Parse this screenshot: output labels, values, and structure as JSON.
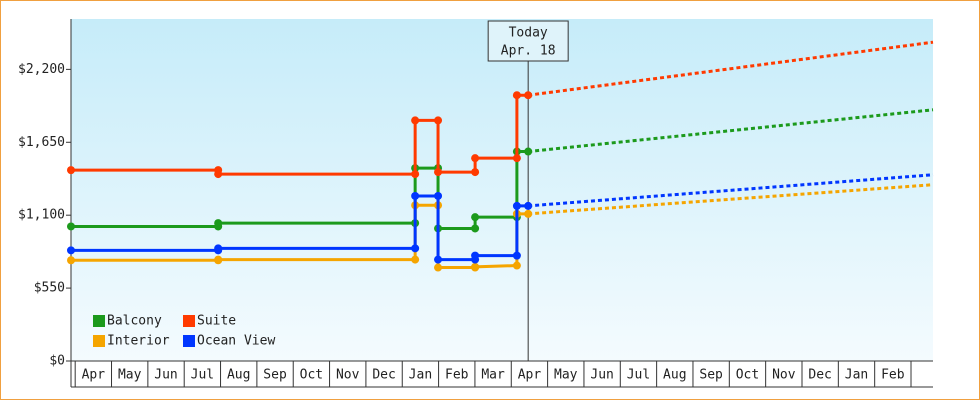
{
  "chart_data": {
    "type": "step-line",
    "categories": [
      "Apr",
      "May",
      "Jun",
      "Jul",
      "Aug",
      "Sep",
      "Oct",
      "Nov",
      "Dec",
      "Jan",
      "Feb",
      "Mar",
      "Apr",
      "May",
      "Jun",
      "Jul",
      "Aug",
      "Sep",
      "Oct",
      "Nov",
      "Dec",
      "Jan",
      "Feb"
    ],
    "xlim": [
      -0.06,
      23.66
    ],
    "ylim": [
      0,
      2580
    ],
    "yticks": [
      {
        "value": 0,
        "label": "$0"
      },
      {
        "value": 550,
        "label": "$550"
      },
      {
        "value": 1100,
        "label": "$1,100"
      },
      {
        "value": 1650,
        "label": "$1,650"
      },
      {
        "value": 2200,
        "label": "$2,200"
      }
    ],
    "legend": "lower left",
    "annotation": {
      "x": 12.52,
      "title": "Today",
      "label": "Apr. 18"
    },
    "series": [
      {
        "name": "Balcony",
        "color": "#1c9a1c",
        "x": [
          -0.06,
          3.99,
          3.99,
          9.41,
          9.41,
          10.04,
          10.04,
          11.06,
          11.06,
          12.21,
          12.21,
          12.52
        ],
        "values": [
          1015,
          1015,
          1040,
          1040,
          1455,
          1455,
          1000,
          1000,
          1085,
          1085,
          1580,
          1580
        ],
        "forecast_x": [
          23.66
        ],
        "forecast_values": [
          1895
        ]
      },
      {
        "name": "Suite",
        "color": "#ff3a00",
        "x": [
          -0.06,
          3.99,
          3.99,
          9.41,
          9.41,
          10.04,
          10.04,
          11.06,
          11.06,
          12.21,
          12.21,
          12.52
        ],
        "values": [
          1440,
          1440,
          1410,
          1410,
          1815,
          1815,
          1425,
          1425,
          1530,
          1530,
          2005,
          2005
        ],
        "forecast_x": [
          23.66
        ],
        "forecast_values": [
          2405
        ]
      },
      {
        "name": "Interior",
        "color": "#f5a500",
        "x": [
          -0.06,
          3.99,
          3.99,
          9.41,
          9.41,
          10.04,
          10.04,
          11.06,
          11.06,
          12.21,
          12.21,
          12.52
        ],
        "values": [
          760,
          760,
          765,
          765,
          1175,
          1175,
          705,
          705,
          710,
          720,
          1110,
          1110
        ],
        "forecast_x": [
          23.66
        ],
        "forecast_values": [
          1330
        ]
      },
      {
        "name": "Ocean View",
        "color": "#0036ff",
        "x": [
          -0.06,
          3.99,
          3.99,
          9.41,
          9.41,
          10.04,
          10.04,
          11.06,
          11.06,
          12.21,
          12.21,
          12.52
        ],
        "values": [
          835,
          835,
          850,
          850,
          1245,
          1245,
          765,
          765,
          795,
          795,
          1170,
          1170
        ],
        "forecast_x": [
          23.66
        ],
        "forecast_values": [
          1405
        ]
      }
    ]
  }
}
